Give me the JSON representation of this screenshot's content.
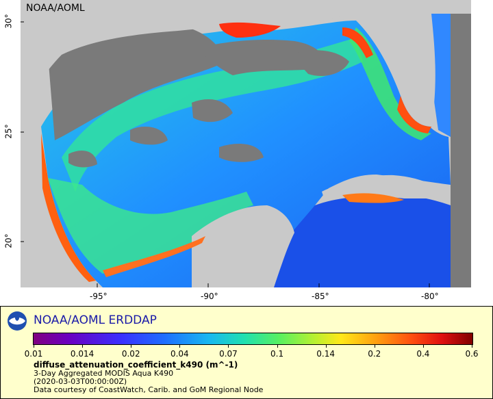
{
  "map": {
    "watermark": "NOAA/AOML",
    "lat_ticks": [
      "30°",
      "25°",
      "20°"
    ],
    "lon_ticks": [
      "-95°",
      "-90°",
      "-85°",
      "-80°"
    ],
    "colors": {
      "land": "#c9c9c9",
      "no_data": "#7a7a7a",
      "open_water_low": "#1e6fff",
      "shelf": "#20e0b0",
      "coast_high": "#ff5010"
    }
  },
  "legend": {
    "logo_icon": "noaa-logo-icon",
    "title": "NOAA/AOML ERDDAP",
    "colorbar_labels": [
      "0.01",
      "0.014",
      "0.02",
      "0.04",
      "0.07",
      "0.1",
      "0.14",
      "0.2",
      "0.4",
      "0.6"
    ],
    "variable": "diffuse_attenuation_coefficient_k490 (m^-1)",
    "dataset": "3-Day Aggregated MODIS Aqua K490",
    "time": "(2020-03-03T00:00:00Z)",
    "credit": "Data courtesy of CoastWatch, Carib. and GoM Regional Node"
  }
}
